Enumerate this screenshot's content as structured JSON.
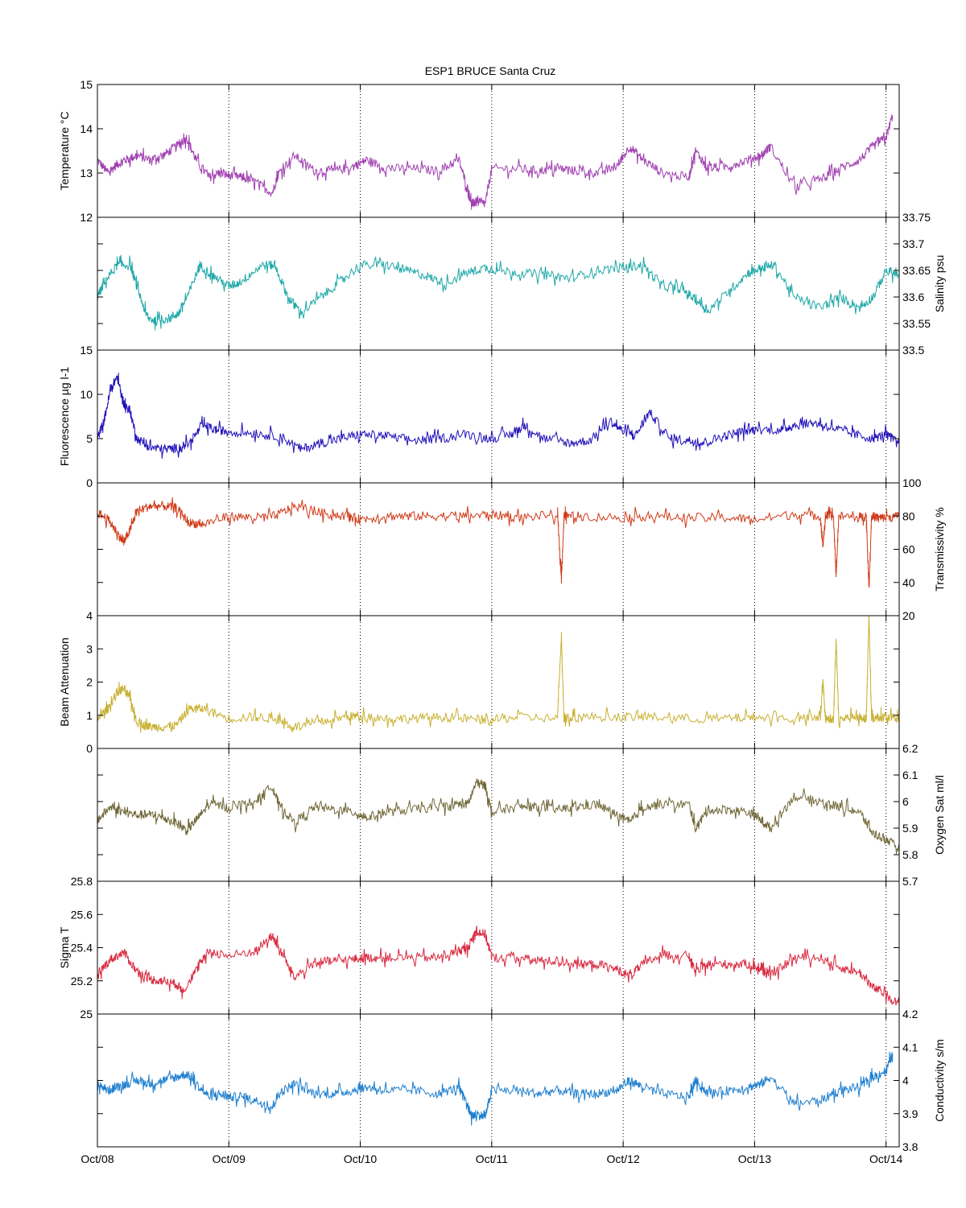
{
  "title": "ESP1 BRUCE Santa Cruz",
  "x_tick_labels": [
    "Oct/08",
    "Oct/09",
    "Oct/10",
    "Oct/11",
    "Oct/12",
    "Oct/13",
    "Oct/14"
  ],
  "chart_data": [
    {
      "type": "line",
      "ylabel": "Temperature °C",
      "y_axis_side": "left",
      "ylim": [
        12,
        15
      ],
      "yticks": [
        12,
        13,
        14,
        15
      ],
      "ytick_labels": [
        "12",
        "13",
        "14",
        "15"
      ],
      "color": "#a040b0",
      "x": [
        8.0,
        8.08,
        8.15,
        8.22,
        8.3,
        8.4,
        8.5,
        8.6,
        8.68,
        8.75,
        8.85,
        8.92,
        9.0,
        9.1,
        9.2,
        9.33,
        9.38,
        9.5,
        9.65,
        9.8,
        9.95,
        10.05,
        10.2,
        10.4,
        10.6,
        10.75,
        10.82,
        10.85,
        10.88,
        10.95,
        11.0,
        11.2,
        11.35,
        11.5,
        11.65,
        11.8,
        11.95,
        12.05,
        12.15,
        12.3,
        12.5,
        12.55,
        12.65,
        12.8,
        12.95,
        13.05,
        13.12,
        13.3,
        13.5,
        13.65,
        13.8,
        13.9,
        14.0,
        14.05
      ],
      "values": [
        13.3,
        13.0,
        13.2,
        13.3,
        13.4,
        13.3,
        13.4,
        13.6,
        13.8,
        13.3,
        12.9,
        13.0,
        12.95,
        12.9,
        12.8,
        12.55,
        13.0,
        13.4,
        13.05,
        13.05,
        13.15,
        13.3,
        13.1,
        13.1,
        13.05,
        13.3,
        12.6,
        12.3,
        12.35,
        12.3,
        13.1,
        13.1,
        13.05,
        13.1,
        13.05,
        13.0,
        13.15,
        13.6,
        13.3,
        13.0,
        12.9,
        13.5,
        13.1,
        13.15,
        13.3,
        13.4,
        13.6,
        12.7,
        12.85,
        13.1,
        13.3,
        13.6,
        13.8,
        14.3
      ]
    },
    {
      "type": "line",
      "ylabel": "Salinity psu",
      "y_axis_side": "right",
      "ylim": [
        33.5,
        33.75
      ],
      "yticks": [
        33.5,
        33.55,
        33.6,
        33.65,
        33.7,
        33.75
      ],
      "ytick_labels": [
        "33.5",
        "33.55",
        "33.6",
        "33.65",
        "33.7",
        "33.75"
      ],
      "color": "#20a8a8",
      "x": [
        8.0,
        8.06,
        8.15,
        8.25,
        8.3,
        8.38,
        8.45,
        8.55,
        8.62,
        8.7,
        8.78,
        8.88,
        9.0,
        9.1,
        9.25,
        9.35,
        9.45,
        9.55,
        9.7,
        9.85,
        10.0,
        10.2,
        10.35,
        10.5,
        10.65,
        10.8,
        10.95,
        11.05,
        11.25,
        11.45,
        11.6,
        11.8,
        12.0,
        12.15,
        12.3,
        12.45,
        12.55,
        12.65,
        12.8,
        12.95,
        13.05,
        13.15,
        13.3,
        13.5,
        13.65,
        13.8,
        13.9,
        14.0,
        14.1
      ],
      "values": [
        33.6,
        33.63,
        33.66,
        33.66,
        33.62,
        33.56,
        33.555,
        33.56,
        33.57,
        33.61,
        33.66,
        33.64,
        33.62,
        33.63,
        33.66,
        33.66,
        33.6,
        33.57,
        33.6,
        33.63,
        33.66,
        33.66,
        33.65,
        33.64,
        33.625,
        33.645,
        33.655,
        33.65,
        33.645,
        33.64,
        33.635,
        33.65,
        33.655,
        33.66,
        33.62,
        33.615,
        33.595,
        33.575,
        33.61,
        33.645,
        33.655,
        33.66,
        33.6,
        33.58,
        33.6,
        33.58,
        33.6,
        33.65,
        33.64
      ]
    },
    {
      "type": "line",
      "ylabel": "Fluorescence µg l-1",
      "y_axis_side": "left",
      "ylim": [
        0,
        15
      ],
      "yticks": [
        0,
        5,
        10,
        15
      ],
      "ytick_labels": [
        "0",
        "5",
        "10",
        "15"
      ],
      "color": "#2010b8",
      "x": [
        8.0,
        8.05,
        8.1,
        8.15,
        8.2,
        8.25,
        8.3,
        8.4,
        8.5,
        8.6,
        8.7,
        8.8,
        8.9,
        9.0,
        9.2,
        9.4,
        9.55,
        9.7,
        9.85,
        10.0,
        10.2,
        10.4,
        10.6,
        10.8,
        11.0,
        11.15,
        11.25,
        11.4,
        11.6,
        11.75,
        11.9,
        12.0,
        12.1,
        12.2,
        12.35,
        12.5,
        12.6,
        12.75,
        12.9,
        13.0,
        13.2,
        13.3,
        13.45,
        13.6,
        13.75,
        13.9,
        14.0,
        14.1
      ],
      "values": [
        5.0,
        7.0,
        10.5,
        12.0,
        9.0,
        8.0,
        5.0,
        4.0,
        3.8,
        3.9,
        4.5,
        6.5,
        6.0,
        5.8,
        5.6,
        5.2,
        3.8,
        4.5,
        5.0,
        5.5,
        5.3,
        4.8,
        5.0,
        5.5,
        5.0,
        5.5,
        6.5,
        5.0,
        4.5,
        4.8,
        7.0,
        5.8,
        5.5,
        8.0,
        5.0,
        4.8,
        4.5,
        5.2,
        5.8,
        6.0,
        6.0,
        6.5,
        6.8,
        6.2,
        5.5,
        5.0,
        5.5,
        4.5
      ]
    },
    {
      "type": "line",
      "ylabel": "Transmissivity %",
      "y_axis_side": "right",
      "ylim": [
        20,
        100
      ],
      "yticks": [
        20,
        40,
        60,
        80,
        100
      ],
      "ytick_labels": [
        "20",
        "40",
        "60",
        "80",
        "100"
      ],
      "color": "#d03a18",
      "x": [
        8.0,
        8.08,
        8.15,
        8.2,
        8.25,
        8.3,
        8.4,
        8.5,
        8.6,
        8.7,
        8.8,
        9.0,
        9.2,
        9.35,
        9.5,
        9.7,
        9.9,
        10.0,
        10.2,
        10.4,
        10.6,
        10.8,
        11.0,
        11.2,
        11.5,
        11.53,
        11.55,
        11.57,
        11.7,
        12.0,
        12.2,
        12.5,
        12.8,
        13.0,
        13.3,
        13.5,
        13.52,
        13.54,
        13.6,
        13.62,
        13.64,
        13.8,
        13.85,
        13.87,
        13.89,
        13.95,
        14.0,
        14.1
      ],
      "values": [
        82,
        78,
        70,
        64,
        72,
        83,
        86,
        86,
        85,
        76,
        75,
        80,
        79,
        80,
        86,
        82,
        80,
        78,
        80,
        80,
        80,
        80,
        81,
        79,
        81,
        42,
        80,
        80,
        80,
        79,
        80,
        79,
        79,
        78,
        81,
        80,
        62,
        80,
        80,
        44,
        80,
        79,
        80,
        36,
        80,
        79,
        79,
        80
      ]
    },
    {
      "type": "line",
      "ylabel": "Beam Attenuation",
      "y_axis_side": "left",
      "ylim": [
        0,
        4
      ],
      "yticks": [
        0,
        1,
        2,
        3,
        4
      ],
      "ytick_labels": [
        "0",
        "1",
        "2",
        "3",
        "4"
      ],
      "color": "#c8b030",
      "x": [
        8.0,
        8.08,
        8.15,
        8.2,
        8.25,
        8.3,
        8.4,
        8.5,
        8.6,
        8.7,
        8.8,
        9.0,
        9.2,
        9.35,
        9.5,
        9.7,
        9.9,
        10.0,
        10.2,
        10.4,
        10.6,
        10.8,
        11.0,
        11.2,
        11.5,
        11.53,
        11.55,
        11.57,
        11.7,
        12.0,
        12.2,
        12.5,
        12.8,
        13.0,
        13.3,
        13.5,
        13.52,
        13.54,
        13.6,
        13.62,
        13.64,
        13.8,
        13.85,
        13.87,
        13.89,
        13.95,
        14.0,
        14.1
      ],
      "values": [
        0.9,
        1.2,
        1.7,
        1.8,
        1.5,
        0.8,
        0.65,
        0.65,
        0.7,
        1.2,
        1.2,
        0.9,
        0.95,
        0.9,
        0.65,
        0.8,
        0.95,
        1.0,
        0.9,
        0.9,
        0.95,
        0.9,
        0.85,
        0.95,
        0.9,
        3.4,
        0.9,
        0.9,
        0.95,
        0.95,
        0.95,
        0.9,
        0.9,
        0.95,
        0.9,
        0.9,
        2.0,
        0.9,
        0.9,
        3.3,
        0.9,
        0.95,
        0.9,
        4.0,
        0.9,
        0.95,
        0.95,
        0.9
      ]
    },
    {
      "type": "line",
      "ylabel": "Oxygen Sat ml/l",
      "y_axis_side": "right",
      "ylim": [
        5.7,
        6.2
      ],
      "yticks": [
        5.7,
        5.8,
        5.9,
        6.0,
        6.1,
        6.2
      ],
      "ytick_labels": [
        "5.7",
        "5.8",
        "5.9",
        "6",
        "6.1",
        "6.2"
      ],
      "color": "#706838",
      "x": [
        8.0,
        8.1,
        8.2,
        8.3,
        8.4,
        8.5,
        8.6,
        8.68,
        8.75,
        8.85,
        9.0,
        9.2,
        9.33,
        9.38,
        9.5,
        9.65,
        9.8,
        9.95,
        10.05,
        10.2,
        10.4,
        10.6,
        10.75,
        10.82,
        10.88,
        10.95,
        11.0,
        11.2,
        11.35,
        11.5,
        11.65,
        11.8,
        11.95,
        12.05,
        12.15,
        12.3,
        12.5,
        12.55,
        12.65,
        12.8,
        12.95,
        13.05,
        13.12,
        13.3,
        13.5,
        13.65,
        13.8,
        13.9,
        14.0,
        14.1
      ],
      "values": [
        5.93,
        5.98,
        5.96,
        5.95,
        5.95,
        5.94,
        5.92,
        5.89,
        5.93,
        5.99,
        5.98,
        6.0,
        6.06,
        5.99,
        5.92,
        5.98,
        5.97,
        5.96,
        5.94,
        5.96,
        5.97,
        5.98,
        5.99,
        5.99,
        6.07,
        6.06,
        5.96,
        5.98,
        5.98,
        5.97,
        5.98,
        5.99,
        5.95,
        5.92,
        5.98,
        5.99,
        5.99,
        5.9,
        5.97,
        5.97,
        5.96,
        5.93,
        5.9,
        6.02,
        6.0,
        5.98,
        5.96,
        5.88,
        5.86,
        5.82
      ]
    },
    {
      "type": "line",
      "ylabel": "Sigma T",
      "y_axis_side": "left",
      "ylim": [
        25,
        25.8
      ],
      "yticks": [
        25,
        25.2,
        25.4,
        25.6,
        25.8
      ],
      "ytick_labels": [
        "25",
        "25.2",
        "25.4",
        "25.6",
        "25.8"
      ],
      "color": "#d82a40",
      "x": [
        8.0,
        8.1,
        8.2,
        8.3,
        8.4,
        8.5,
        8.6,
        8.65,
        8.75,
        8.85,
        9.0,
        9.2,
        9.33,
        9.38,
        9.5,
        9.65,
        9.8,
        9.95,
        10.05,
        10.2,
        10.4,
        10.6,
        10.75,
        10.82,
        10.88,
        10.95,
        11.0,
        11.2,
        11.35,
        11.5,
        11.65,
        11.8,
        11.95,
        12.05,
        12.15,
        12.3,
        12.5,
        12.55,
        12.65,
        12.8,
        12.95,
        13.05,
        13.12,
        13.3,
        13.5,
        13.65,
        13.8,
        13.9,
        14.0,
        14.1
      ],
      "values": [
        25.24,
        25.33,
        25.37,
        25.26,
        25.21,
        25.2,
        25.18,
        25.14,
        25.26,
        25.38,
        25.35,
        25.38,
        25.47,
        25.4,
        25.22,
        25.31,
        25.32,
        25.33,
        25.34,
        25.34,
        25.34,
        25.34,
        25.38,
        25.4,
        25.5,
        25.48,
        25.34,
        25.34,
        25.32,
        25.32,
        25.3,
        25.3,
        25.27,
        25.23,
        25.3,
        25.36,
        25.35,
        25.25,
        25.3,
        25.3,
        25.3,
        25.27,
        25.23,
        25.34,
        25.34,
        25.28,
        25.25,
        25.16,
        25.12,
        25.05
      ]
    },
    {
      "type": "line",
      "ylabel": "Conductivity s/m",
      "y_axis_side": "right",
      "ylim": [
        3.8,
        4.2
      ],
      "yticks": [
        3.8,
        3.9,
        4.0,
        4.1,
        4.2
      ],
      "ytick_labels": [
        "3.8",
        "3.9",
        "4",
        "4.1",
        "4.2"
      ],
      "color": "#2080d0",
      "x": [
        8.0,
        8.08,
        8.15,
        8.22,
        8.3,
        8.4,
        8.5,
        8.6,
        8.68,
        8.75,
        8.85,
        8.92,
        9.0,
        9.1,
        9.2,
        9.33,
        9.38,
        9.5,
        9.65,
        9.8,
        9.95,
        10.05,
        10.2,
        10.4,
        10.6,
        10.75,
        10.82,
        10.85,
        10.88,
        10.95,
        11.0,
        11.2,
        11.35,
        11.5,
        11.65,
        11.8,
        11.95,
        12.05,
        12.15,
        12.3,
        12.5,
        12.55,
        12.65,
        12.8,
        12.95,
        13.05,
        13.12,
        13.3,
        13.5,
        13.65,
        13.8,
        13.9,
        14.0,
        14.05
      ],
      "values": [
        3.99,
        3.97,
        3.98,
        3.99,
        4.0,
        3.99,
        4.0,
        4.01,
        4.02,
        3.99,
        3.95,
        3.96,
        3.95,
        3.95,
        3.94,
        3.92,
        3.96,
        3.99,
        3.96,
        3.96,
        3.97,
        3.98,
        3.97,
        3.97,
        3.96,
        3.98,
        3.92,
        3.89,
        3.9,
        3.89,
        3.97,
        3.97,
        3.96,
        3.97,
        3.96,
        3.96,
        3.97,
        4.0,
        3.98,
        3.96,
        3.95,
        4.0,
        3.96,
        3.97,
        3.98,
        3.99,
        4.01,
        3.93,
        3.94,
        3.97,
        3.98,
        4.01,
        4.03,
        4.08
      ]
    }
  ]
}
